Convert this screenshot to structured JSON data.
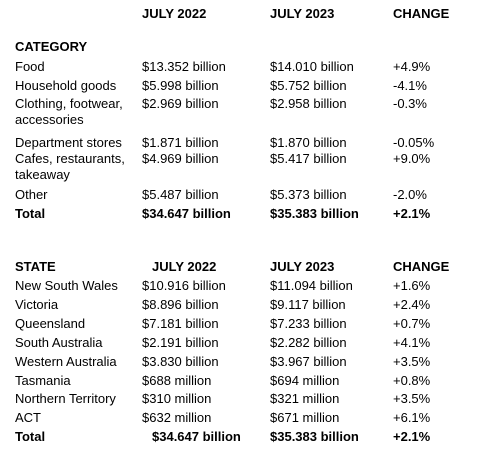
{
  "category_table": {
    "columns": [
      "JULY 2022",
      "JULY 2023",
      "CHANGE"
    ],
    "title": "CATEGORY",
    "rows": [
      [
        "Food",
        "$13.352 billion",
        "$14.010 billion",
        "+4.9%"
      ],
      [
        "Household goods",
        "$5.998 billion",
        "$5.752 billion",
        "-4.1%"
      ],
      [
        "Clothing, footwear, accessories",
        "$2.969 billion",
        "$2.958 billion",
        "-0.3%"
      ],
      [
        "Department stores",
        "$1.871 billion",
        "$1.870 billion",
        "-0.05%"
      ],
      [
        "Cafes, restaurants, takeaway",
        "$4.969 billion",
        "$5.417 billion",
        "+9.0%"
      ],
      [
        "Other",
        "$5.487 billion",
        "$5.373 billion",
        "-2.0%"
      ]
    ],
    "total": [
      "Total",
      "$34.647 billion",
      "$35.383 billion",
      "+2.1%"
    ]
  },
  "state_table": {
    "title": "STATE",
    "columns": [
      "JULY 2022",
      "JULY 2023",
      "CHANGE"
    ],
    "rows": [
      [
        "New South Wales",
        "$10.916 billion",
        "$11.094 billion",
        "+1.6%"
      ],
      [
        "Victoria",
        "$8.896 billion",
        "$9.117 billion",
        "+2.4%"
      ],
      [
        "Queensland",
        "$7.181 billion",
        "$7.233 billion",
        "+0.7%"
      ],
      [
        "South Australia",
        "$2.191 billion",
        "$2.282 billion",
        "+4.1%"
      ],
      [
        "Western Australia",
        "$3.830 billion",
        "$3.967 billion",
        "+3.5%"
      ],
      [
        "Tasmania",
        "$688 million",
        "$694 million",
        "+0.8%"
      ],
      [
        "Northern Territory",
        "$310 million",
        "$321 million",
        "+3.5%"
      ],
      [
        "ACT",
        "$632 million",
        "$671 million",
        "+6.1%"
      ]
    ],
    "total": [
      "Total",
      "$34.647 billion",
      "$35.383 billion",
      "+2.1%"
    ]
  }
}
